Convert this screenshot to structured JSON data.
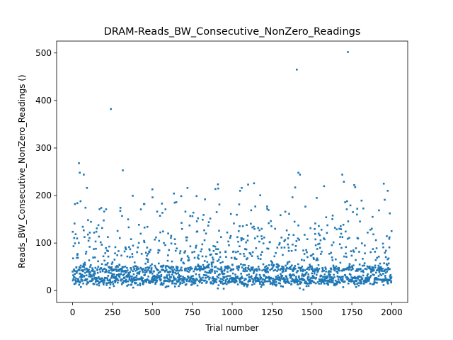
{
  "chart_data": {
    "type": "scatter",
    "title": "DRAM-Reads_BW_Consecutive_NonZero_Readings",
    "xlabel": "Trial number",
    "ylabel": "Reads_BW_Consecutive_NonZero_Readings ()",
    "xlim": [
      -100,
      2100
    ],
    "ylim": [
      -25,
      525
    ],
    "xticks": [
      0,
      250,
      500,
      750,
      1000,
      1250,
      1500,
      1750,
      2000
    ],
    "yticks": [
      0,
      100,
      200,
      300,
      400,
      500
    ],
    "grid": false,
    "legend": "none",
    "marker_color": "#1f77b4",
    "n_points": 2000,
    "bands": [
      {
        "center": 22,
        "spread": 6,
        "share": 0.45
      },
      {
        "center": 45,
        "spread": 5,
        "share": 0.3
      },
      {
        "center": 80,
        "spread": 30,
        "share": 0.2
      },
      {
        "center": 140,
        "spread": 40,
        "share": 0.05
      }
    ],
    "outliers": [
      {
        "x": 15,
        "y": 182
      },
      {
        "x": 30,
        "y": 184
      },
      {
        "x": 40,
        "y": 268
      },
      {
        "x": 45,
        "y": 248
      },
      {
        "x": 50,
        "y": 188
      },
      {
        "x": 70,
        "y": 244
      },
      {
        "x": 90,
        "y": 216
      },
      {
        "x": 180,
        "y": 174
      },
      {
        "x": 210,
        "y": 171
      },
      {
        "x": 240,
        "y": 382
      },
      {
        "x": 315,
        "y": 253
      },
      {
        "x": 310,
        "y": 157
      },
      {
        "x": 450,
        "y": 182
      },
      {
        "x": 500,
        "y": 213
      },
      {
        "x": 560,
        "y": 183
      },
      {
        "x": 640,
        "y": 185
      },
      {
        "x": 650,
        "y": 186
      },
      {
        "x": 720,
        "y": 216
      },
      {
        "x": 830,
        "y": 192
      },
      {
        "x": 1050,
        "y": 210
      },
      {
        "x": 1060,
        "y": 216
      },
      {
        "x": 1100,
        "y": 223
      },
      {
        "x": 1145,
        "y": 177
      },
      {
        "x": 1220,
        "y": 172
      },
      {
        "x": 1395,
        "y": 217
      },
      {
        "x": 1405,
        "y": 465
      },
      {
        "x": 1415,
        "y": 248
      },
      {
        "x": 1425,
        "y": 244
      },
      {
        "x": 1530,
        "y": 195
      },
      {
        "x": 1690,
        "y": 244
      },
      {
        "x": 1700,
        "y": 229
      },
      {
        "x": 1725,
        "y": 502
      },
      {
        "x": 1720,
        "y": 188
      },
      {
        "x": 1765,
        "y": 222
      },
      {
        "x": 1950,
        "y": 225
      },
      {
        "x": 1975,
        "y": 210
      }
    ]
  }
}
